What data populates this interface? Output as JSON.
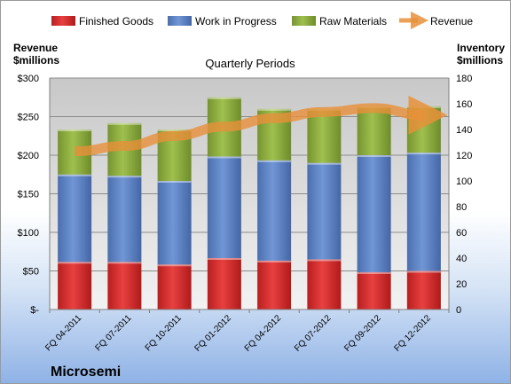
{
  "chart_data": {
    "type": "bar",
    "stacked": true,
    "title": "Quarterly Periods",
    "company": "Microsemi",
    "y_left_label_line1": "Revenue",
    "y_left_label_line2": "$millions",
    "y_right_label_line1": "Inventory",
    "y_right_label_line2": "$millions",
    "categories": [
      "FQ 04-2011",
      "FQ 07-2011",
      "FQ 10-2011",
      "FQ 01-2012",
      "FQ 04-2012",
      "FQ 07-2012",
      "FQ 09-2012",
      "FQ 12-2012"
    ],
    "series": [
      {
        "name": "Finished Goods",
        "axis": "right",
        "color": "#d42b2b",
        "values": [
          37,
          37,
          35,
          40,
          38,
          39,
          29,
          30
        ]
      },
      {
        "name": "Work in Progress",
        "axis": "right",
        "color": "#5b7fbf",
        "values": [
          68,
          67,
          65,
          79,
          78,
          75,
          91,
          92
        ]
      },
      {
        "name": "Raw Materials",
        "axis": "right",
        "color": "#8aaa3f",
        "values": [
          35,
          41,
          40,
          46,
          40,
          42,
          38,
          36
        ]
      },
      {
        "name": "Revenue",
        "type": "line",
        "axis": "left",
        "color": "#e8903a",
        "values": [
          205,
          212,
          225,
          237,
          248,
          256,
          261,
          252
        ]
      }
    ],
    "y_left": {
      "min": 0,
      "max": 300,
      "step": 50,
      "tick_labels": [
        "$-",
        "$50",
        "$100",
        "$150",
        "$200",
        "$250",
        "$300"
      ]
    },
    "y_right": {
      "min": 0,
      "max": 180,
      "step": 20,
      "tick_labels": [
        "0",
        "20",
        "40",
        "60",
        "80",
        "100",
        "120",
        "140",
        "160",
        "180"
      ]
    },
    "grid": true,
    "legend_position": "top"
  }
}
